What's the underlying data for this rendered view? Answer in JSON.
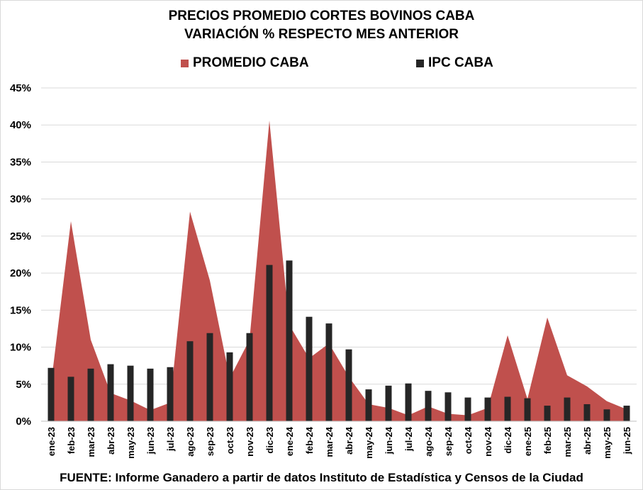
{
  "chart_data": {
    "type": "bar",
    "title": "PRECIOS PROMEDIO CORTES BOVINOS CABA",
    "subtitle": "VARIACIÓN % RESPECTO MES ANTERIOR",
    "categories": [
      "ene-23",
      "feb-23",
      "mar-23",
      "abr-23",
      "may-23",
      "jun-23",
      "jul-23",
      "ago-23",
      "sep-23",
      "oct-23",
      "nov-23",
      "dic-23",
      "ene-24",
      "feb-24",
      "mar-24",
      "abr-24",
      "may-24",
      "jun-24",
      "jul-24",
      "ago-24",
      "sep-24",
      "oct-24",
      "nov-24",
      "dic-24",
      "ene-25",
      "feb-25",
      "mar-25",
      "abr-25",
      "may-25",
      "jun-25"
    ],
    "series": [
      {
        "name": "PROMEDIO CABA",
        "type": "area",
        "color": "#c0504d",
        "values": [
          5.0,
          27.0,
          11.0,
          3.8,
          2.8,
          1.5,
          2.5,
          28.3,
          19.0,
          5.8,
          11.0,
          40.6,
          13.0,
          8.5,
          10.5,
          6.0,
          2.3,
          1.8,
          0.8,
          2.0,
          1.0,
          0.8,
          1.8,
          11.6,
          3.0,
          14.0,
          6.2,
          4.7,
          2.7,
          1.6
        ]
      },
      {
        "name": "IPC CABA",
        "type": "bar",
        "color": "#262626",
        "values": [
          7.2,
          6.0,
          7.1,
          7.7,
          7.5,
          7.1,
          7.3,
          10.8,
          11.9,
          9.3,
          11.9,
          21.1,
          21.7,
          14.1,
          13.2,
          9.7,
          4.3,
          4.8,
          5.1,
          4.1,
          3.9,
          3.2,
          3.2,
          3.3,
          3.1,
          2.1,
          3.2,
          2.3,
          1.6,
          2.1
        ]
      }
    ],
    "y_ticks": [
      "0%",
      "5%",
      "10%",
      "15%",
      "20%",
      "25%",
      "30%",
      "35%",
      "40%",
      "45%"
    ],
    "ylim": [
      0,
      45
    ],
    "grid": true,
    "legend_position": "top"
  },
  "source": "FUENTE: Informe Ganadero a partir de datos Instituto de Estadística y Censos de la Ciudad"
}
